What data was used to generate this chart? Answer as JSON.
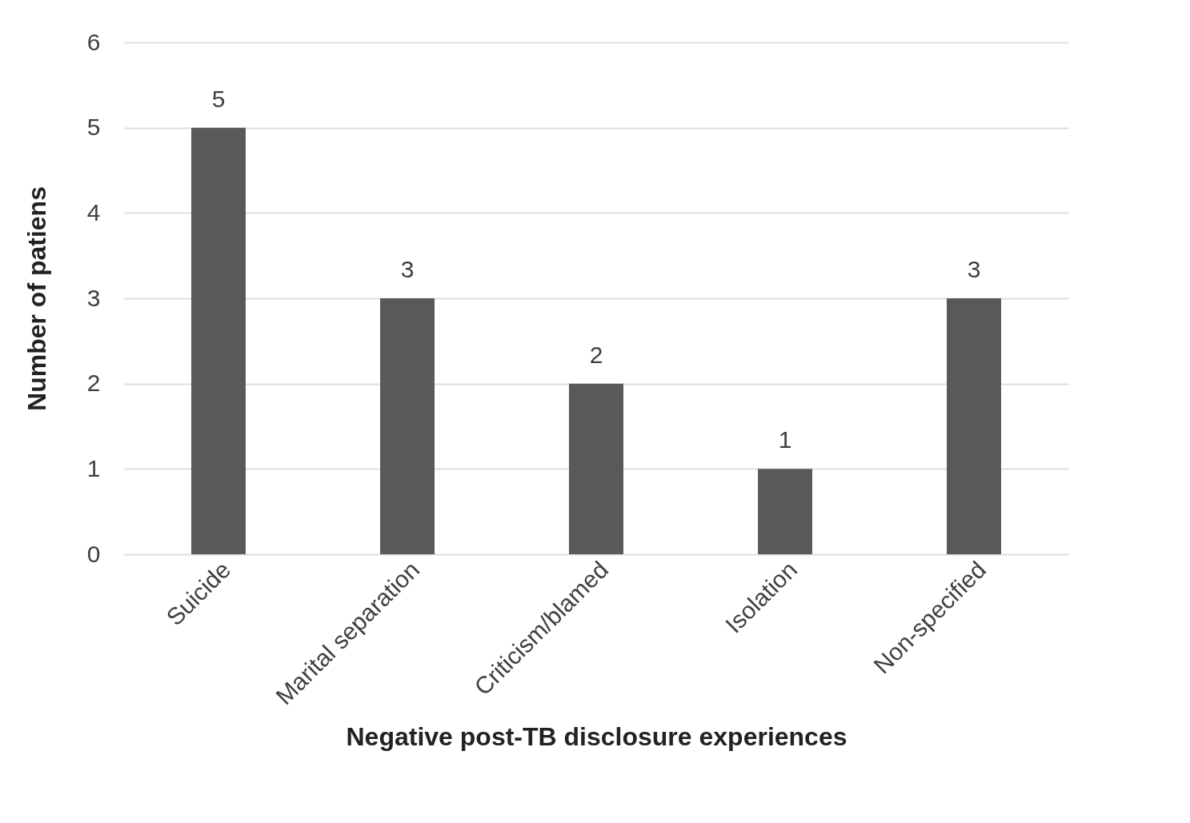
{
  "chart_data": {
    "type": "bar",
    "xlabel": "Negative post-TB disclosure experiences",
    "ylabel": "Number of patiens",
    "categories": [
      "Suicide",
      "Marital separation",
      "Criticism/blamed",
      "Isolation",
      "Non-specified"
    ],
    "values": [
      5,
      3,
      2,
      1,
      3
    ],
    "color": "#595959",
    "ylim": [
      0,
      6
    ],
    "yticks": [
      0,
      1,
      2,
      3,
      4,
      5,
      6
    ],
    "grid": "y",
    "data_labels": true
  }
}
